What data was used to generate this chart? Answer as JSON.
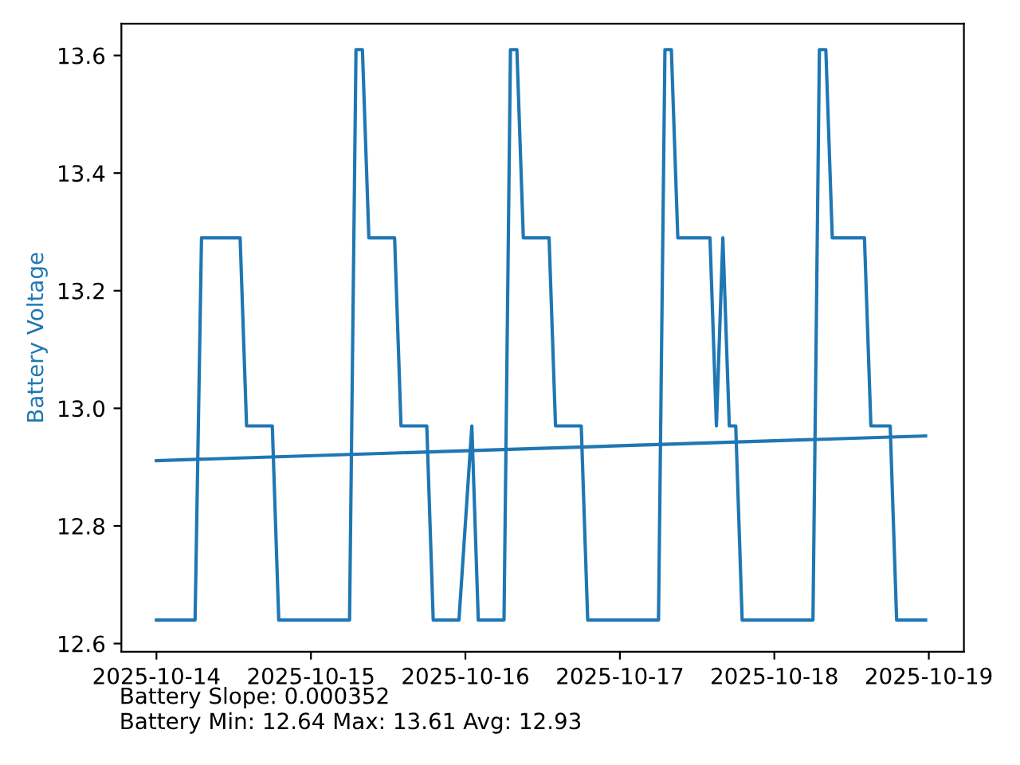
{
  "chart_data": {
    "type": "line",
    "ylabel": "Battery Voltage",
    "xlim": [
      "2025-10-13T18:33",
      "2025-10-19T05:27"
    ],
    "ylim": [
      12.586,
      13.654
    ],
    "xticks": [
      {
        "value": "2025-10-14",
        "label": "2025-10-14"
      },
      {
        "value": "2025-10-15",
        "label": "2025-10-15"
      },
      {
        "value": "2025-10-16",
        "label": "2025-10-16"
      },
      {
        "value": "2025-10-17",
        "label": "2025-10-17"
      },
      {
        "value": "2025-10-18",
        "label": "2025-10-18"
      },
      {
        "value": "2025-10-19",
        "label": "2025-10-19"
      }
    ],
    "yticks": [
      12.6,
      12.8,
      {
        "value": 13,
        "label": "13.0"
      },
      13.2,
      13.4,
      13.6
    ],
    "grid": false,
    "legend": false,
    "marker": "none",
    "line_style": "solid",
    "series": [
      {
        "color": "#1f77b4",
        "x": [
          "2025-10-14T00:00",
          "2025-10-14T06:00",
          "2025-10-14T07:00",
          "2025-10-14T13:00",
          "2025-10-14T14:00",
          "2025-10-14T18:00",
          "2025-10-14T19:00",
          "2025-10-15T06:00",
          "2025-10-15T07:00",
          "2025-10-15T08:00",
          "2025-10-15T09:00",
          "2025-10-15T13:00",
          "2025-10-15T14:00",
          "2025-10-15T18:00",
          "2025-10-15T19:00",
          "2025-10-15T23:00",
          "2025-10-16T01:00",
          "2025-10-16T02:00",
          "2025-10-16T06:00",
          "2025-10-16T07:00",
          "2025-10-16T08:00",
          "2025-10-16T09:00",
          "2025-10-16T13:00",
          "2025-10-16T14:00",
          "2025-10-16T18:00",
          "2025-10-16T19:00",
          "2025-10-17T06:00",
          "2025-10-17T07:00",
          "2025-10-17T08:00",
          "2025-10-17T09:00",
          "2025-10-17T14:00",
          "2025-10-17T15:00",
          "2025-10-17T16:00",
          "2025-10-17T17:00",
          "2025-10-17T18:00",
          "2025-10-17T19:00",
          "2025-10-18T06:00",
          "2025-10-18T07:00",
          "2025-10-18T08:00",
          "2025-10-18T09:00",
          "2025-10-18T14:00",
          "2025-10-18T15:00",
          "2025-10-18T18:00",
          "2025-10-18T19:00",
          "2025-10-18T23:30"
        ],
        "values": [
          12.64,
          12.64,
          13.29,
          13.29,
          12.97,
          12.97,
          12.64,
          12.64,
          13.61,
          13.61,
          13.29,
          13.29,
          12.97,
          12.97,
          12.64,
          12.64,
          12.97,
          12.64,
          12.64,
          13.61,
          13.61,
          13.29,
          13.29,
          12.97,
          12.97,
          12.64,
          12.64,
          13.61,
          13.61,
          13.29,
          13.29,
          12.97,
          13.29,
          12.97,
          12.97,
          12.64,
          12.64,
          13.61,
          13.61,
          13.29,
          13.29,
          12.97,
          12.97,
          12.64,
          12.64
        ]
      },
      {
        "color": "#1f77b4",
        "x": [
          "2025-10-14T00:00",
          "2025-10-18T23:30"
        ],
        "values": [
          12.911,
          12.953
        ]
      }
    ],
    "annotations": [
      "Battery Slope: 0.000352",
      "Battery Min: 12.64 Max: 13.61 Avg: 12.93"
    ]
  }
}
